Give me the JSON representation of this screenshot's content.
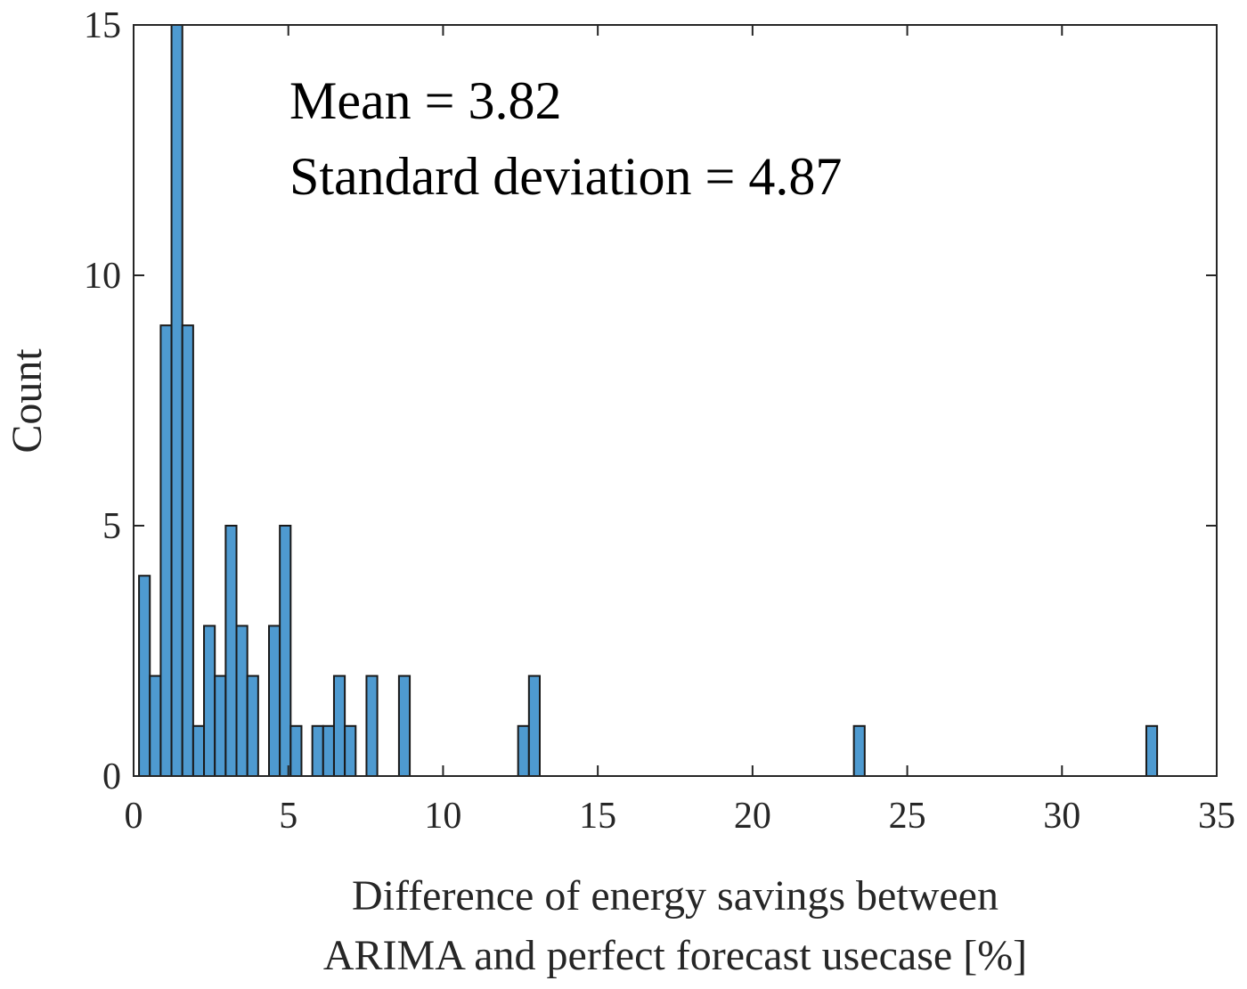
{
  "chart_data": {
    "type": "bar",
    "subtype": "histogram",
    "bin_width": 0.35,
    "xlabel_lines": [
      "Difference of energy savings between",
      "ARIMA and perfect forecast usecase [%]"
    ],
    "ylabel": "Count",
    "xlim": [
      0,
      35
    ],
    "ylim": [
      0,
      15
    ],
    "x_ticks": [
      0,
      5,
      10,
      15,
      20,
      25,
      30,
      35
    ],
    "y_ticks": [
      0,
      5,
      10,
      15
    ],
    "grid": false,
    "bar_color": "#4e9ad0",
    "edge_color": "#1a1a1a",
    "annotations": [
      "Mean = 3.82",
      "Standard deviation = 4.87"
    ],
    "bins": [
      {
        "x": 0.35,
        "count": 4
      },
      {
        "x": 0.7,
        "count": 2
      },
      {
        "x": 1.05,
        "count": 9
      },
      {
        "x": 1.4,
        "count": 15
      },
      {
        "x": 1.75,
        "count": 9
      },
      {
        "x": 2.1,
        "count": 1
      },
      {
        "x": 2.45,
        "count": 3
      },
      {
        "x": 2.8,
        "count": 2
      },
      {
        "x": 3.15,
        "count": 5
      },
      {
        "x": 3.5,
        "count": 3
      },
      {
        "x": 3.85,
        "count": 2
      },
      {
        "x": 4.2,
        "count": 0
      },
      {
        "x": 4.55,
        "count": 3
      },
      {
        "x": 4.9,
        "count": 5
      },
      {
        "x": 5.25,
        "count": 1
      },
      {
        "x": 5.6,
        "count": 0
      },
      {
        "x": 5.95,
        "count": 1
      },
      {
        "x": 6.3,
        "count": 1
      },
      {
        "x": 6.65,
        "count": 2
      },
      {
        "x": 7.0,
        "count": 1
      },
      {
        "x": 7.35,
        "count": 0
      },
      {
        "x": 7.7,
        "count": 2
      },
      {
        "x": 8.75,
        "count": 2
      },
      {
        "x": 12.6,
        "count": 1
      },
      {
        "x": 12.95,
        "count": 2
      },
      {
        "x": 23.45,
        "count": 1
      },
      {
        "x": 32.9,
        "count": 1
      }
    ]
  }
}
